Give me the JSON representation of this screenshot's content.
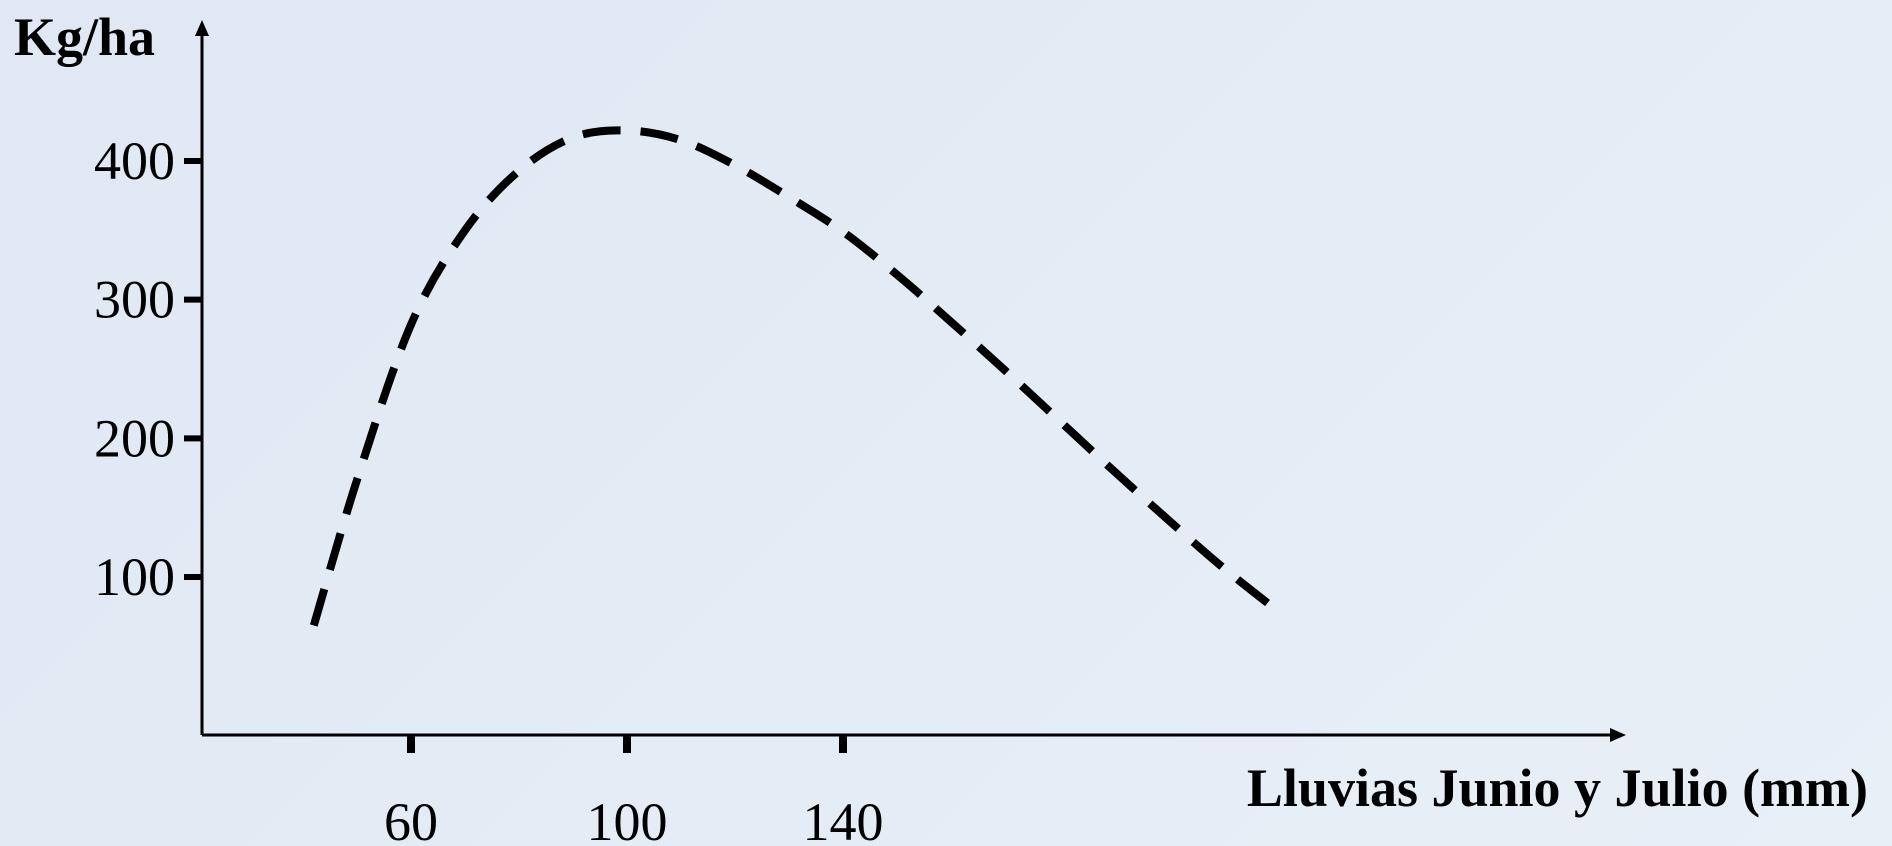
{
  "chart_data": {
    "type": "line",
    "title": "",
    "xlabel": "Lluvias Junio y Julio (mm)",
    "ylabel": "Kg/ha",
    "xlim": [
      20,
      300
    ],
    "ylim": [
      -10,
      500
    ],
    "x_ticks": [
      60,
      100,
      140
    ],
    "x_tick_labels": [
      "60",
      "100",
      "140"
    ],
    "y_ticks": [
      100,
      200,
      300,
      400
    ],
    "y_tick_labels": [
      "100",
      "200",
      "300",
      "400"
    ],
    "grid": false,
    "legend": "none",
    "series": [
      {
        "line_style": "dashed",
        "color": "#000000",
        "x": [
          42,
          50,
          60,
          70,
          80,
          90,
          100,
          110,
          120,
          130,
          140,
          150,
          160,
          170,
          180,
          190,
          200,
          210,
          220
        ],
        "y": [
          65,
          170,
          282,
          350,
          393,
          417,
          422,
          415,
          397,
          374,
          349,
          318,
          284,
          249,
          213,
          177,
          142,
          108,
          77
        ]
      }
    ]
  }
}
